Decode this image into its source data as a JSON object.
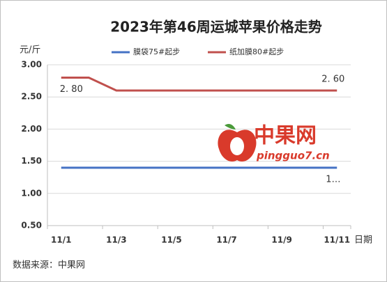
{
  "chart_data": {
    "type": "line",
    "title": "2023年第46周运城苹果价格走势",
    "y_label": "元/斤",
    "x_label": "日期",
    "source": "数据来源：中果网",
    "watermark": {
      "name": "中果网",
      "url": "pingguo7.cn"
    },
    "categories": [
      "11/1",
      null,
      "11/3",
      null,
      "11/5",
      null,
      "11/7",
      null,
      "11/9",
      null,
      "11/11"
    ],
    "series": [
      {
        "name": "膜袋75#起步",
        "color": "#4472c4",
        "values": [
          1.4,
          1.4,
          1.4,
          1.4,
          1.4,
          1.4,
          1.4,
          1.4,
          1.4,
          1.4,
          1.4
        ],
        "value_labels": [
          null,
          null,
          null,
          null,
          null,
          null,
          null,
          null,
          null,
          null,
          "1…"
        ]
      },
      {
        "name": "纸加膜80#起步",
        "color": "#c0504d",
        "values": [
          2.8,
          2.8,
          2.6,
          2.6,
          2.6,
          2.6,
          2.6,
          2.6,
          2.6,
          2.6,
          2.6
        ],
        "value_labels": [
          "2. 80",
          null,
          null,
          null,
          null,
          null,
          null,
          null,
          null,
          null,
          "2. 60"
        ]
      }
    ],
    "ylim": [
      0.5,
      3.0
    ],
    "yticks": [
      {
        "value": 0.5,
        "label": "0.50"
      },
      {
        "value": 1.0,
        "label": "1.00"
      },
      {
        "value": 1.5,
        "label": "1.50"
      },
      {
        "value": 2.0,
        "label": "2.00"
      },
      {
        "value": 2.5,
        "label": "2.50"
      },
      {
        "value": 3.0,
        "label": "3.00"
      }
    ],
    "grid": true,
    "legend": "top"
  }
}
